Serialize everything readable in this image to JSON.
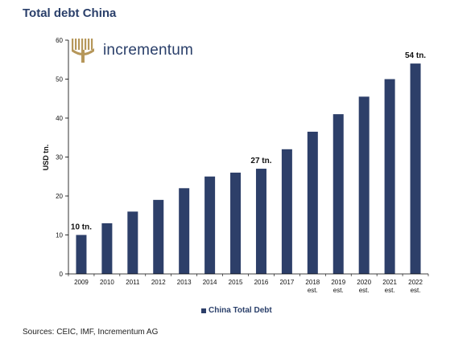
{
  "title": "Total debt China",
  "logo": {
    "text": "incrementum"
  },
  "source": "Sources: CEIC, IMF, Incrementum AG",
  "colors": {
    "bar": "#2d3f69",
    "title": "#2a3f6a"
  },
  "chart_data": {
    "type": "bar",
    "title": "Total debt China",
    "ylabel": "USD tn.",
    "xlabel": "",
    "ylim": [
      0,
      60
    ],
    "yticks": [
      0,
      10,
      20,
      30,
      40,
      50,
      60
    ],
    "grid": false,
    "legend_position": "bottom-center",
    "categories": [
      {
        "year": "2009",
        "note": ""
      },
      {
        "year": "2010",
        "note": ""
      },
      {
        "year": "2011",
        "note": ""
      },
      {
        "year": "2012",
        "note": ""
      },
      {
        "year": "2013",
        "note": ""
      },
      {
        "year": "2014",
        "note": ""
      },
      {
        "year": "2015",
        "note": ""
      },
      {
        "year": "2016",
        "note": ""
      },
      {
        "year": "2017",
        "note": ""
      },
      {
        "year": "2018",
        "note": "est."
      },
      {
        "year": "2019",
        "note": "est."
      },
      {
        "year": "2020",
        "note": "est."
      },
      {
        "year": "2021",
        "note": "est."
      },
      {
        "year": "2022",
        "note": "est."
      }
    ],
    "series": [
      {
        "name": "China Total Debt",
        "values": [
          10,
          13,
          16,
          19,
          22,
          25,
          26,
          27,
          32,
          36.5,
          41,
          45.5,
          50,
          54
        ]
      }
    ],
    "annotations": [
      {
        "index": 0,
        "text": "10 tn."
      },
      {
        "index": 7,
        "text": "27 tn."
      },
      {
        "index": 13,
        "text": "54 tn."
      }
    ]
  }
}
